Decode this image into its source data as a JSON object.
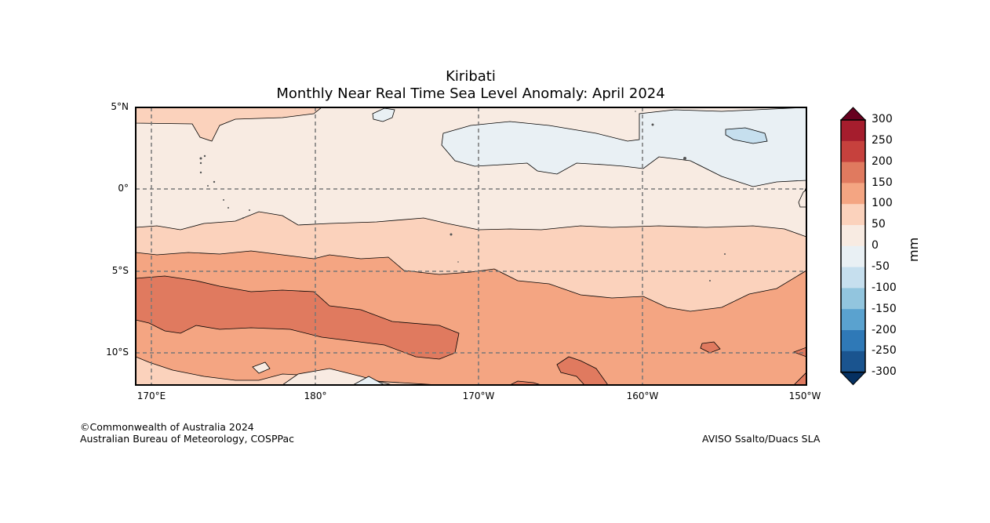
{
  "title": "Kiribati",
  "subtitle": "Monthly Near Real Time Sea Level Anomaly: April 2024",
  "latitude_labels": [
    "5°N",
    "0°",
    "5°S",
    "10°S"
  ],
  "longitude_labels": [
    "170°E",
    "180°",
    "170°W",
    "160°W",
    "150°W"
  ],
  "colorbar": {
    "unit": "mm",
    "ticks": [
      "300",
      "250",
      "200",
      "150",
      "100",
      "50",
      "0",
      "-50",
      "-100",
      "-150",
      "-200",
      "-250",
      "-300"
    ],
    "colors": [
      "#67001f",
      "#a51d2d",
      "#c6413d",
      "#e07a5f",
      "#f4a582",
      "#fbd2bc",
      "#f8ebe2",
      "#e9f0f4",
      "#c6dfee",
      "#92c5de",
      "#5aa2cf",
      "#2f79b7",
      "#1a548f",
      "#053061"
    ]
  },
  "footer_left": {
    "line1": "©Commonwealth of Australia 2024",
    "line2": "Australian Bureau of Meteorology, COSPPac"
  },
  "footer_right": "AVISO Ssalto/Duacs SLA"
}
